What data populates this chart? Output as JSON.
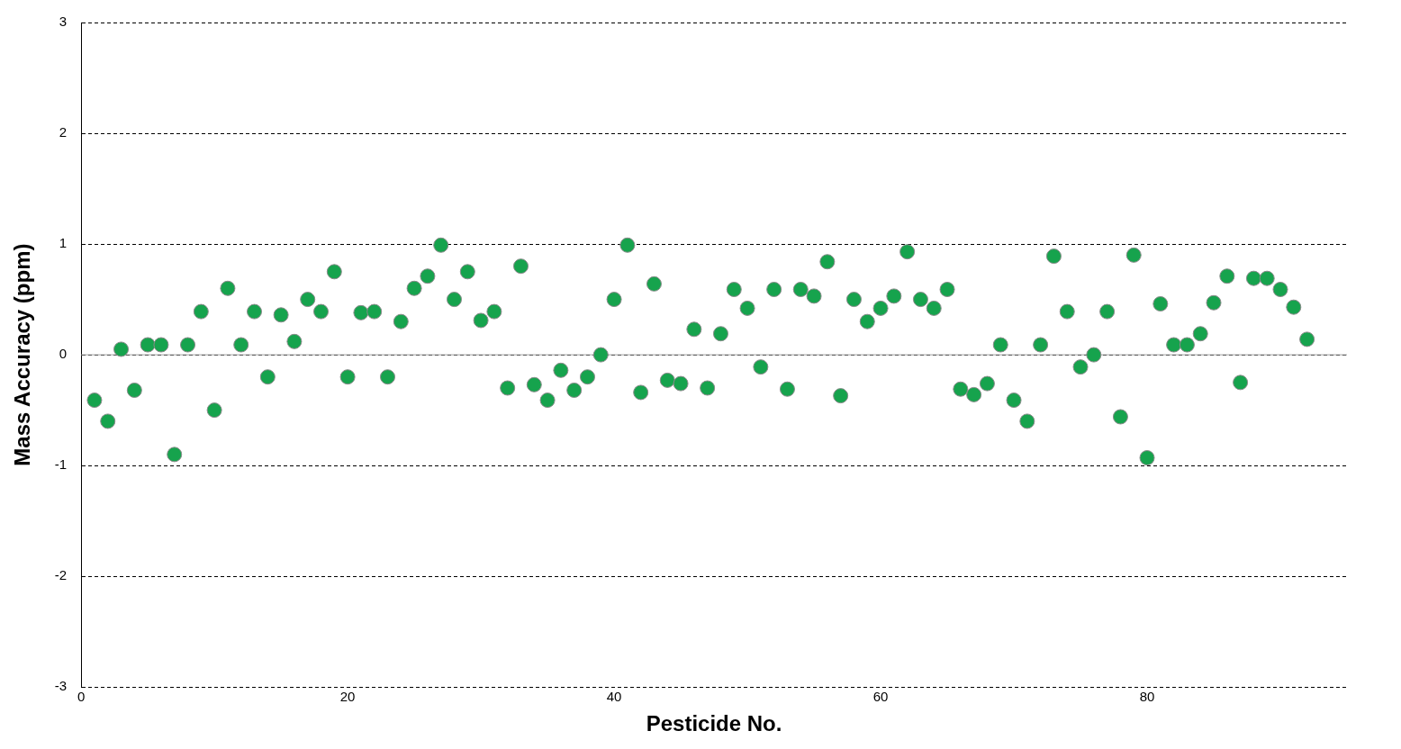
{
  "chart_data": {
    "type": "scatter",
    "xlabel": "Pesticide No.",
    "ylabel": "Mass Accuracy (ppm)",
    "x": [
      1,
      2,
      3,
      4,
      5,
      6,
      7,
      8,
      9,
      10,
      11,
      12,
      13,
      14,
      15,
      16,
      17,
      18,
      19,
      20,
      21,
      22,
      23,
      24,
      25,
      26,
      27,
      28,
      29,
      30,
      31,
      32,
      33,
      34,
      35,
      36,
      37,
      38,
      39,
      40,
      41,
      42,
      43,
      44,
      45,
      46,
      47,
      48,
      49,
      50,
      51,
      52,
      53,
      54,
      55,
      56,
      57,
      58,
      59,
      60,
      61,
      62,
      63,
      64,
      65,
      66,
      67,
      68,
      69,
      70,
      71,
      72,
      73,
      74,
      75,
      76,
      77,
      78,
      79,
      80,
      81,
      82,
      83,
      84,
      85,
      86,
      87,
      88,
      89,
      90,
      91,
      92
    ],
    "series": [
      {
        "color": "#16a34d",
        "values": [
          -0.41,
          -0.6,
          0.05,
          -0.32,
          0.09,
          0.09,
          -0.9,
          0.09,
          0.39,
          -0.5,
          0.6,
          0.09,
          0.39,
          -0.2,
          0.36,
          0.12,
          0.5,
          0.39,
          0.75,
          -0.2,
          0.38,
          0.39,
          -0.2,
          0.3,
          0.6,
          0.71,
          0.99,
          0.5,
          0.75,
          0.31,
          0.39,
          -0.3,
          0.8,
          -0.27,
          -0.41,
          -0.14,
          -0.32,
          -0.2,
          0,
          0.5,
          0.99,
          -0.34,
          0.64,
          -0.23,
          -0.26,
          0.23,
          -0.3,
          0.19,
          0.59,
          0.42,
          -0.11,
          0.59,
          -0.31,
          0.59,
          0.53,
          0.84,
          -0.37,
          0.5,
          0.3,
          0.42,
          0.53,
          0.93,
          0.5,
          0.42,
          0.59,
          -0.31,
          -0.36,
          -0.26,
          0.09,
          -0.41,
          -0.6,
          0.09,
          0.89,
          0.39,
          -0.11,
          0,
          0.39,
          -0.56,
          0.9,
          -0.93,
          0.46,
          0.09,
          0.09,
          0.19,
          0.47,
          0.71,
          -0.25,
          0.69,
          0.69,
          0.59,
          0.43,
          0.14
        ]
      }
    ],
    "xlim": [
      0,
      95
    ],
    "xticks": [
      0,
      20,
      40,
      60,
      80
    ],
    "ylim": [
      -3,
      3
    ],
    "yticks": [
      -3,
      -2,
      -1,
      0,
      1,
      2,
      3
    ],
    "grid": "y",
    "line_style": "dashed",
    "marker": "circle",
    "legend": false,
    "ref_lines": [
      {
        "axis": "y",
        "value": 0,
        "color": "#a0a0a0",
        "line_style": "solid"
      }
    ]
  }
}
